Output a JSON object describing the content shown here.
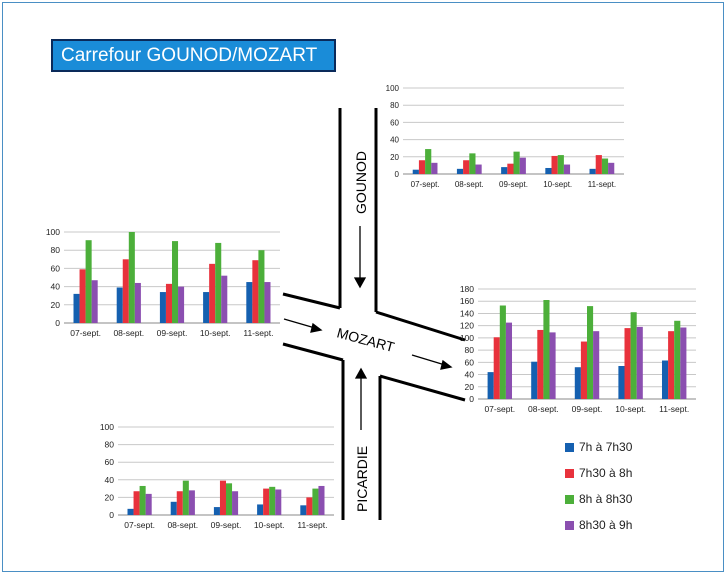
{
  "title": "Carrefour GOUNOD/MOZART",
  "streets": {
    "gounod": "GOUNOD",
    "mozart": "MOZART",
    "picardie": "PICARDIE"
  },
  "legend": [
    {
      "label": "7h à 7h30",
      "color": "#1560b0"
    },
    {
      "label": "7h30 à 8h",
      "color": "#e8323c"
    },
    {
      "label": "8h à 8h30",
      "color": "#4caf3a"
    },
    {
      "label": "8h30 à 9h",
      "color": "#8b4fb0"
    }
  ],
  "chart_data": [
    {
      "type": "bar",
      "categories": [
        "07-sept.",
        "08-sept.",
        "09-sept.",
        "10-sept.",
        "11-sept."
      ],
      "ylim": [
        0,
        100
      ],
      "yticks": [
        0,
        20,
        40,
        60,
        80,
        100
      ],
      "series": [
        {
          "name": "7h à 7h30",
          "values": [
            5,
            6,
            8,
            7,
            6
          ]
        },
        {
          "name": "7h30 à 8h",
          "values": [
            16,
            16,
            12,
            21,
            22
          ]
        },
        {
          "name": "8h à 8h30",
          "values": [
            29,
            24,
            26,
            22,
            18
          ]
        },
        {
          "name": "8h30 à 9h",
          "values": [
            13,
            11,
            19,
            11,
            13
          ]
        }
      ]
    },
    {
      "type": "bar",
      "categories": [
        "07-sept.",
        "08-sept.",
        "09-sept.",
        "10-sept.",
        "11-sept."
      ],
      "ylim": [
        0,
        100
      ],
      "yticks": [
        0,
        20,
        40,
        60,
        80,
        100
      ],
      "series": [
        {
          "name": "7h à 7h30",
          "values": [
            32,
            39,
            34,
            34,
            45
          ]
        },
        {
          "name": "7h30 à 8h",
          "values": [
            59,
            70,
            43,
            65,
            69
          ]
        },
        {
          "name": "8h à 8h30",
          "values": [
            91,
            100,
            90,
            88,
            80
          ]
        },
        {
          "name": "8h30 à 9h",
          "values": [
            47,
            44,
            40,
            52,
            45
          ]
        }
      ]
    },
    {
      "type": "bar",
      "categories": [
        "07-sept.",
        "08-sept.",
        "09-sept.",
        "10-sept.",
        "11-sept."
      ],
      "ylim": [
        0,
        180
      ],
      "yticks": [
        0,
        20,
        40,
        60,
        80,
        100,
        120,
        140,
        160,
        180
      ],
      "series": [
        {
          "name": "7h à 7h30",
          "values": [
            44,
            61,
            52,
            54,
            63
          ]
        },
        {
          "name": "7h30 à 8h",
          "values": [
            101,
            113,
            94,
            116,
            111
          ]
        },
        {
          "name": "8h à 8h30",
          "values": [
            153,
            162,
            152,
            142,
            128
          ]
        },
        {
          "name": "8h30 à 9h",
          "values": [
            125,
            109,
            111,
            118,
            117
          ]
        }
      ]
    },
    {
      "type": "bar",
      "categories": [
        "07-sept.",
        "08-sept.",
        "09-sept.",
        "10-sept.",
        "11-sept."
      ],
      "ylim": [
        0,
        100
      ],
      "yticks": [
        0,
        20,
        40,
        60,
        80,
        100
      ],
      "series": [
        {
          "name": "7h à 7h30",
          "values": [
            7,
            15,
            9,
            12,
            11
          ]
        },
        {
          "name": "7h30 à 8h",
          "values": [
            27,
            27,
            39,
            30,
            20
          ]
        },
        {
          "name": "8h à 8h30",
          "values": [
            33,
            39,
            36,
            32,
            30
          ]
        },
        {
          "name": "8h30 à 9h",
          "values": [
            24,
            28,
            27,
            29,
            33
          ]
        }
      ]
    }
  ]
}
